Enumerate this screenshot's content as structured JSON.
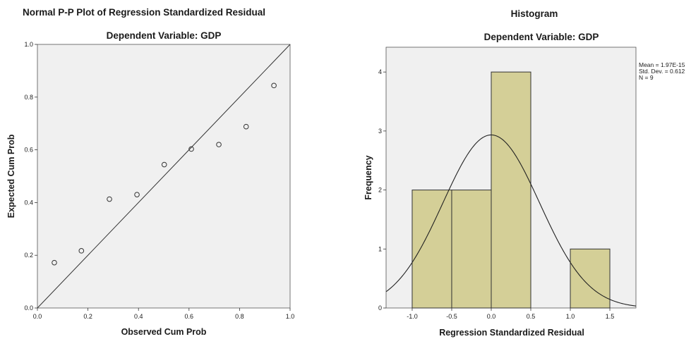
{
  "chart_data": [
    {
      "type": "scatter",
      "title": "Normal P-P Plot of Regression Standardized Residual",
      "subtitle": "Dependent Variable: GDP",
      "xlabel": "Observed Cum Prob",
      "ylabel": "Expected Cum Prob",
      "xlim": [
        0,
        1
      ],
      "ylim": [
        0,
        1
      ],
      "xticks": [
        "0.0",
        "0.2",
        "0.4",
        "0.6",
        "0.8",
        "1.0"
      ],
      "yticks": [
        "0.0",
        "0.2",
        "0.4",
        "0.6",
        "0.8",
        "1.0"
      ],
      "reference_line": [
        [
          0,
          0
        ],
        [
          1,
          1
        ]
      ],
      "points": [
        {
          "x": 0.067,
          "y": 0.172
        },
        {
          "x": 0.174,
          "y": 0.217
        },
        {
          "x": 0.285,
          "y": 0.413
        },
        {
          "x": 0.394,
          "y": 0.43
        },
        {
          "x": 0.502,
          "y": 0.544
        },
        {
          "x": 0.609,
          "y": 0.603
        },
        {
          "x": 0.718,
          "y": 0.62
        },
        {
          "x": 0.826,
          "y": 0.688
        },
        {
          "x": 0.936,
          "y": 0.844
        }
      ],
      "colors": {
        "plot_bg": "#f0f0f0",
        "marker": "#333333",
        "line": "#333333"
      }
    },
    {
      "type": "bar",
      "title": "Histogram",
      "subtitle": "Dependent Variable: GDP",
      "xlabel": "Regression Standardized Residual",
      "ylabel": "Frequency",
      "xlim": [
        -1.33,
        1.83
      ],
      "ylim": [
        0,
        4.42
      ],
      "xticks": [
        "-1.0",
        "-0.5",
        "0.0",
        "0.5",
        "1.0",
        "1.5"
      ],
      "yticks": [
        "0",
        "1",
        "2",
        "3",
        "4"
      ],
      "bins": [
        {
          "start": -1.0,
          "end": -0.5,
          "count": 2
        },
        {
          "start": -0.5,
          "end": 0.0,
          "count": 2
        },
        {
          "start": 0.0,
          "end": 0.5,
          "count": 4
        },
        {
          "start": 0.5,
          "end": 1.0,
          "count": 0
        },
        {
          "start": 1.0,
          "end": 1.5,
          "count": 1
        }
      ],
      "normal_curve": {
        "mean": 0.0,
        "sd": 0.612,
        "n": 9,
        "bin_width": 0.5
      },
      "stats": [
        "Mean = 1.97E-15",
        "Std. Dev. = 0.612",
        "N = 9"
      ],
      "colors": {
        "plot_bg": "#f0f0f0",
        "bar_fill": "#d4cf97",
        "bar_stroke": "#333333",
        "curve": "#222222"
      }
    }
  ]
}
